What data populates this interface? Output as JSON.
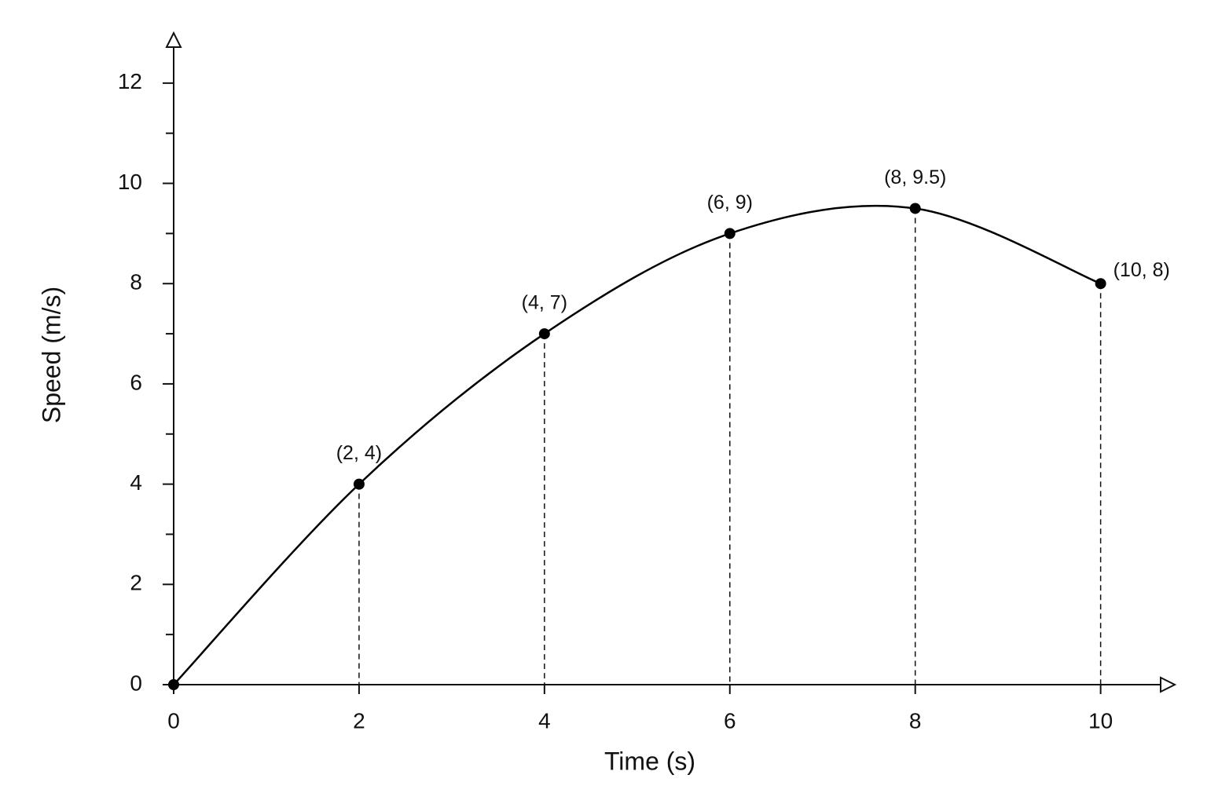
{
  "chart_data": {
    "type": "line",
    "x_label": "Time (s)",
    "y_label": "Speed (m/s)",
    "x": [
      0,
      2,
      4,
      6,
      8,
      10
    ],
    "values": [
      0,
      4,
      7,
      9,
      9.5,
      8
    ],
    "value_labels": [
      null,
      "(2, 4)",
      "(4, 7)",
      "(6, 9)",
      "(8, 9.5)",
      "(10, 8)"
    ],
    "color": "#000000",
    "xlim": [
      0,
      10.8
    ],
    "xticks": [
      0,
      2,
      4,
      6,
      8,
      10
    ],
    "ylim": [
      0,
      13
    ],
    "yticks": [
      0,
      2,
      4,
      6,
      8,
      10,
      12
    ],
    "minor_yticks": [
      1,
      3,
      5,
      7,
      9,
      11
    ],
    "grid": false,
    "markers": true,
    "drop_lines": true
  }
}
